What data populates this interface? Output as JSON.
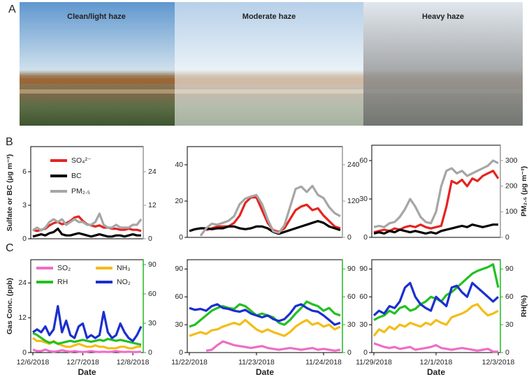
{
  "panel_labels": [
    "A",
    "B",
    "C"
  ],
  "photo_labels": [
    "Clean/light haze",
    "Moderate haze",
    "Heavy haze"
  ],
  "chart_data": [
    {
      "type": "line",
      "ylabel": "Sulfate or BC (μg m⁻³)",
      "legend": "upper left",
      "ylim": [
        0,
        8.25
      ],
      "yticks": [
        0,
        3,
        6
      ],
      "y2lim": [
        0,
        33
      ],
      "y2ticks": [
        0,
        12,
        24
      ],
      "y2color": "#999999",
      "series": [
        {
          "name": "SO₄²⁻",
          "color": "#e52420",
          "values": [
            0.8,
            0.7,
            0.8,
            0.9,
            1.2,
            1.4,
            1.5,
            1.3,
            1.4,
            1.6,
            1.9,
            2.0,
            1.6,
            1.3,
            1.2,
            1.1,
            1.2,
            1.0,
            1.0,
            0.9,
            0.9,
            0.8,
            0.8,
            0.9,
            0.8,
            0.8,
            0.7
          ]
        },
        {
          "name": "BC",
          "color": "#000000",
          "values": [
            0.2,
            0.3,
            0.4,
            0.3,
            0.5,
            0.6,
            0.9,
            0.4,
            0.3,
            0.3,
            0.4,
            0.5,
            0.4,
            0.3,
            0.2,
            0.3,
            0.4,
            0.3,
            0.2,
            0.2,
            0.3,
            0.3,
            0.2,
            0.3,
            0.4,
            0.3,
            0.3
          ]
        },
        {
          "name": "PM₂.₅",
          "color": "#a6a6a6",
          "axis": "y2",
          "values": [
            3,
            4,
            3,
            4,
            6,
            7,
            6,
            7,
            5,
            6,
            7,
            6,
            6,
            5,
            5,
            6,
            9,
            5,
            4,
            4,
            5,
            4,
            4,
            4,
            5,
            5,
            7
          ]
        }
      ]
    },
    {
      "type": "line",
      "ylim": [
        0,
        50
      ],
      "yticks": [
        0,
        20,
        40
      ],
      "y2lim": [
        0,
        300
      ],
      "y2ticks": [
        0,
        120,
        240
      ],
      "y2color": "#999999",
      "series": [
        {
          "color": "#e52420",
          "values": [
            null,
            null,
            null,
            4,
            5,
            6,
            6,
            6,
            8,
            12,
            19,
            22,
            22,
            15,
            8,
            4,
            3,
            5,
            10,
            15,
            17,
            18,
            15,
            16,
            12,
            9,
            6,
            5
          ]
        },
        {
          "color": "#000000",
          "values": [
            3.5,
            4.5,
            5,
            5,
            4.5,
            5,
            5,
            6,
            6,
            5,
            4.5,
            5,
            6,
            6,
            5,
            3,
            2,
            3,
            4,
            5,
            6,
            7,
            8,
            9,
            8,
            6,
            5,
            4
          ]
        },
        {
          "color": "#a6a6a6",
          "axis": "y2",
          "values": [
            null,
            null,
            5,
            30,
            45,
            42,
            48,
            55,
            70,
            110,
            128,
            135,
            140,
            110,
            60,
            20,
            15,
            40,
            100,
            160,
            168,
            150,
            170,
            140,
            130,
            100,
            80,
            70
          ]
        }
      ]
    },
    {
      "type": "line",
      "y2label": "PM₂.₅ (μg m⁻³)",
      "ylim": [
        0,
        72
      ],
      "yticks": [
        0,
        30,
        60
      ],
      "y2lim": [
        0,
        360
      ],
      "y2ticks": [
        0,
        100,
        200,
        300
      ],
      "y2color": "#999999",
      "series": [
        {
          "color": "#e52420",
          "values": [
            4,
            5,
            6,
            5,
            7,
            6,
            8,
            9,
            8,
            10,
            8,
            7,
            8,
            9,
            24,
            44,
            42,
            45,
            40,
            46,
            44,
            48,
            50,
            52,
            46
          ]
        },
        {
          "color": "#000000",
          "values": [
            3,
            4,
            3,
            5,
            4,
            6,
            5,
            4,
            5,
            4,
            3,
            4,
            3,
            5,
            6,
            7,
            8,
            9,
            8,
            10,
            9,
            8,
            9,
            10,
            10
          ]
        },
        {
          "color": "#a6a6a6",
          "axis": "y2",
          "values": [
            40,
            45,
            40,
            55,
            60,
            80,
            110,
            150,
            120,
            80,
            60,
            55,
            100,
            200,
            260,
            270,
            250,
            260,
            240,
            250,
            260,
            270,
            280,
            300,
            290
          ]
        }
      ]
    },
    {
      "type": "line",
      "ylabel": "Gas Conc. (ppb)",
      "xlabel": "Date",
      "legend": "upper left",
      "legend_columns": 2,
      "categories": [
        "12/6/2018",
        null,
        null,
        null,
        null,
        null,
        null,
        null,
        null,
        null,
        null,
        null,
        "12/7/2018",
        null,
        null,
        null,
        null,
        null,
        null,
        null,
        null,
        null,
        null,
        null,
        "12/8/2018",
        null,
        null
      ],
      "ylim": [
        0,
        32
      ],
      "yticks": [
        0,
        12,
        24
      ],
      "y2lim": [
        0,
        95
      ],
      "y2ticks": [
        0,
        30,
        60,
        90
      ],
      "y2color": "#22b822",
      "series": [
        {
          "name": "SO₂",
          "color": "#ee6ec6",
          "values": [
            1,
            0.5,
            0.5,
            1,
            0.5,
            0.3,
            0.5,
            0.8,
            0.5,
            0.3,
            0.5,
            0.3,
            0.2,
            0.3,
            0.5,
            0.3,
            0.2,
            0.3,
            0.2,
            0.3,
            0.5,
            0.3,
            0.2,
            0.3,
            0.2,
            0.2,
            0.3
          ]
        },
        {
          "name": "NH₃",
          "color": "#f3bd18",
          "values": [
            5,
            4,
            4,
            3.5,
            3,
            4,
            3,
            2.5,
            2,
            2,
            2.5,
            3,
            2.5,
            2,
            2,
            2.5,
            2,
            2,
            1.5,
            1.5,
            1.5,
            2,
            2,
            1.5,
            1.5,
            2,
            2
          ]
        },
        {
          "name": "RH",
          "color": "#22c021",
          "axis": "y2",
          "values": [
            20,
            18,
            15,
            12,
            10,
            11,
            9,
            10,
            11,
            12,
            11,
            12,
            13,
            12,
            11,
            12,
            13,
            12,
            14,
            13,
            12,
            13,
            12,
            11,
            10,
            9,
            8
          ]
        },
        {
          "name": "NO₂",
          "color": "#1b2fcf",
          "values": [
            7,
            8,
            7,
            9,
            6,
            8,
            16,
            7,
            11,
            6,
            5,
            9,
            10,
            5,
            6,
            5,
            6,
            14,
            7,
            5,
            6,
            10,
            7,
            5,
            4,
            6,
            9
          ]
        }
      ]
    },
    {
      "type": "line",
      "xlabel": "Date",
      "categories": [
        "11/22/2018",
        null,
        null,
        null,
        null,
        null,
        null,
        null,
        null,
        null,
        null,
        null,
        "11/23/2018",
        null,
        null,
        null,
        null,
        null,
        null,
        null,
        null,
        null,
        null,
        null,
        "11/24/2018",
        null,
        null,
        null
      ],
      "ylim": [
        0,
        100
      ],
      "yticks": [
        0,
        30,
        60,
        90
      ],
      "y2lim": [
        0,
        100
      ],
      "y2ticks": [
        0,
        30,
        60,
        90
      ],
      "y2color": "#22b822",
      "series": [
        {
          "color": "#ee6ec6",
          "values": [
            null,
            null,
            null,
            2,
            3,
            8,
            12,
            10,
            8,
            7,
            6,
            5,
            6,
            7,
            5,
            4,
            3,
            4,
            5,
            4,
            3,
            4,
            5,
            3,
            4,
            3,
            2,
            3
          ]
        },
        {
          "color": "#f3bd18",
          "values": [
            18,
            20,
            22,
            20,
            24,
            25,
            28,
            30,
            32,
            30,
            35,
            30,
            25,
            22,
            25,
            22,
            20,
            18,
            22,
            28,
            32,
            35,
            30,
            32,
            28,
            30,
            25,
            28
          ]
        },
        {
          "color": "#22c021",
          "axis": "y2",
          "values": [
            28,
            30,
            35,
            40,
            45,
            48,
            50,
            48,
            47,
            52,
            50,
            45,
            40,
            42,
            40,
            38,
            32,
            30,
            35,
            42,
            48,
            55,
            52,
            50,
            45,
            48,
            42,
            40
          ]
        },
        {
          "color": "#1b2fcf",
          "values": [
            48,
            46,
            47,
            45,
            50,
            52,
            48,
            47,
            45,
            44,
            46,
            42,
            40,
            38,
            40,
            36,
            34,
            36,
            42,
            50,
            52,
            48,
            45,
            44,
            40,
            35,
            30,
            32
          ]
        }
      ]
    },
    {
      "type": "line",
      "xlabel": "Date",
      "y2label": "RH(%)",
      "categories": [
        "11/29/2018",
        null,
        null,
        null,
        null,
        null,
        null,
        null,
        null,
        null,
        null,
        null,
        "12/1/2018",
        null,
        null,
        null,
        null,
        null,
        null,
        null,
        null,
        null,
        null,
        null,
        "12/3/2018"
      ],
      "ylim": [
        0,
        100
      ],
      "yticks": [
        0,
        30,
        60,
        90
      ],
      "y2lim": [
        0,
        100
      ],
      "y2ticks": [
        0,
        30,
        60,
        90
      ],
      "y2color": "#22b822",
      "series": [
        {
          "color": "#ee6ec6",
          "values": [
            10,
            8,
            6,
            5,
            6,
            4,
            5,
            6,
            3,
            4,
            5,
            6,
            8,
            5,
            4,
            3,
            4,
            5,
            4,
            3,
            2,
            3,
            4,
            1,
            1
          ]
        },
        {
          "color": "#f3bd18",
          "values": [
            18,
            25,
            22,
            28,
            25,
            30,
            28,
            32,
            30,
            28,
            32,
            30,
            35,
            32,
            30,
            38,
            40,
            42,
            45,
            50,
            52,
            45,
            40,
            42,
            45
          ]
        },
        {
          "color": "#22c021",
          "axis": "y2",
          "values": [
            35,
            38,
            40,
            45,
            42,
            48,
            50,
            45,
            47,
            52,
            55,
            60,
            58,
            55,
            62,
            65,
            70,
            75,
            80,
            85,
            88,
            90,
            92,
            95,
            70
          ]
        },
        {
          "color": "#1b2fcf",
          "values": [
            40,
            45,
            42,
            50,
            48,
            55,
            70,
            75,
            60,
            52,
            48,
            45,
            60,
            55,
            50,
            70,
            72,
            65,
            60,
            75,
            70,
            65,
            60,
            55,
            60
          ]
        }
      ]
    }
  ]
}
